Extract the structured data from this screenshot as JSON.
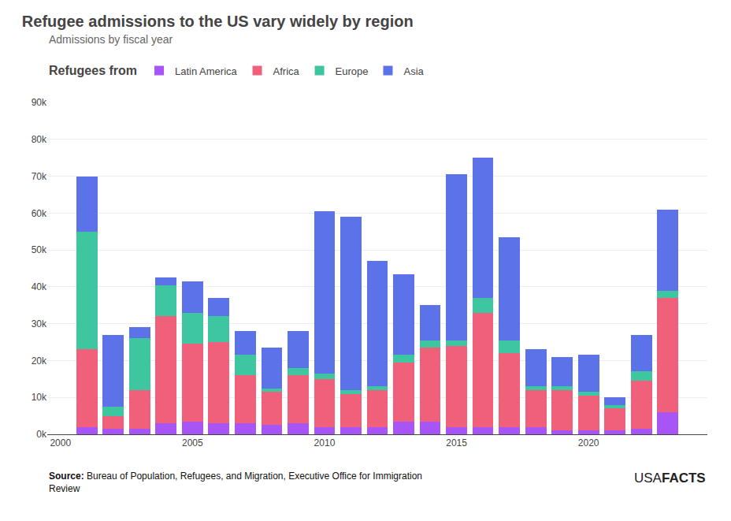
{
  "chart_data": {
    "type": "bar",
    "stacked": true,
    "title": "Refugee admissions to the US vary widely by region",
    "subtitle": "Admissions by fiscal year",
    "x": [
      2001,
      2002,
      2003,
      2004,
      2005,
      2006,
      2007,
      2008,
      2009,
      2010,
      2011,
      2012,
      2013,
      2014,
      2015,
      2016,
      2017,
      2018,
      2019,
      2020,
      2021,
      2022,
      2023
    ],
    "series": [
      {
        "name": "Latin America",
        "color": "#a855f7",
        "values": [
          2000,
          1500,
          1500,
          3000,
          3500,
          3000,
          3000,
          2500,
          3000,
          2000,
          2000,
          2000,
          3500,
          3500,
          2000,
          2000,
          2000,
          2000,
          1000,
          1000,
          1000,
          1500,
          6000
        ]
      },
      {
        "name": "Africa",
        "color": "#f0607a",
        "values": [
          21000,
          3500,
          10500,
          29000,
          21000,
          22000,
          13000,
          9000,
          13000,
          13000,
          9000,
          10000,
          16000,
          20000,
          22000,
          31000,
          20000,
          10000,
          11000,
          9500,
          6000,
          13000,
          31000
        ]
      },
      {
        "name": "Europe",
        "color": "#3ec6a0",
        "values": [
          32000,
          2500,
          14000,
          8500,
          8500,
          7000,
          5500,
          1000,
          2000,
          1500,
          1000,
          1000,
          2000,
          2000,
          1500,
          4000,
          3500,
          1000,
          1000,
          1000,
          1000,
          2500,
          2000
        ]
      },
      {
        "name": "Asia",
        "color": "#5b72e8",
        "values": [
          15000,
          19500,
          3000,
          2000,
          8500,
          5000,
          6500,
          11000,
          10000,
          44000,
          47000,
          34000,
          22000,
          9500,
          45000,
          38000,
          28000,
          10000,
          8000,
          10000,
          2000,
          10000,
          22000
        ]
      }
    ],
    "xlim": [
      1999.5,
      2024.5
    ],
    "xticks": [
      2000,
      2005,
      2010,
      2015,
      2020
    ],
    "ylim": [
      0,
      90000
    ],
    "yticks": [
      {
        "value": 0,
        "label": "0k"
      },
      {
        "value": 10000,
        "label": "10k"
      },
      {
        "value": 20000,
        "label": "20k"
      },
      {
        "value": 30000,
        "label": "30k"
      },
      {
        "value": 40000,
        "label": "40k"
      },
      {
        "value": 50000,
        "label": "50k"
      },
      {
        "value": 60000,
        "label": "60k"
      },
      {
        "value": 70000,
        "label": "70k"
      },
      {
        "value": 80000,
        "label": "80k"
      },
      {
        "value": 90000,
        "label": "90k"
      }
    ],
    "grid": true,
    "legend": "top",
    "annotations": [
      "Refugees from",
      "Source:",
      "Bureau of Population, Refugees, and Migration, Executive Office for Immigration\nReview",
      "USA",
      "FACTS"
    ]
  }
}
